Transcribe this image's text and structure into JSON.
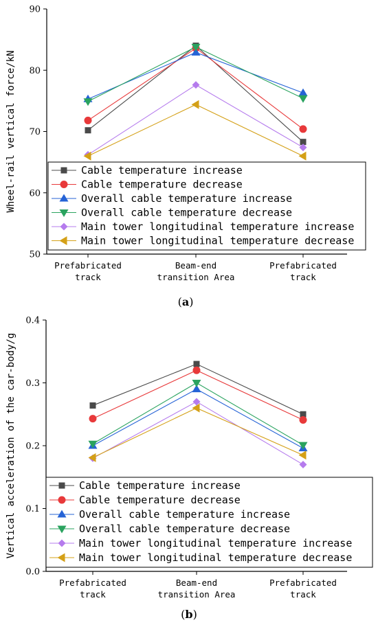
{
  "panel_labels": [
    "(a)",
    "(b)"
  ],
  "colors": {
    "Cable temperature increase": "#4a4a4a",
    "Cable temperature decrease": "#e8393a",
    "Overall cable temperature increase": "#2563d6",
    "Overall cable temperature decrease": "#2aa35f",
    "Main tower longitudinal temperature increase": "#b57bed",
    "Main tower longitudinal temperature decrease": "#d4a017"
  },
  "markers": {
    "Cable temperature increase": "square",
    "Cable temperature decrease": "circle",
    "Overall cable temperature increase": "triangle-up",
    "Overall cable temperature decrease": "triangle-down",
    "Main tower longitudinal temperature increase": "diamond",
    "Main tower longitudinal temperature decrease": "triangle-left"
  },
  "chart_data": [
    {
      "type": "line",
      "panel": "(a)",
      "ylabel": "Wheel-rail vertical force/kN",
      "xlabel": "",
      "categories": [
        [
          "Prefabricated",
          "track"
        ],
        [
          "Beam-end",
          "transition Area"
        ],
        [
          "Prefabricated",
          "track"
        ]
      ],
      "ylim": [
        50,
        90
      ],
      "yticks": [
        50,
        60,
        70,
        80,
        90
      ],
      "legend_position": "lower-center",
      "series": [
        {
          "name": "Cable temperature increase",
          "values": [
            70.2,
            84.0,
            68.3
          ]
        },
        {
          "name": "Cable temperature decrease",
          "values": [
            71.8,
            83.6,
            70.4
          ]
        },
        {
          "name": "Overall cable temperature increase",
          "values": [
            75.3,
            82.9,
            76.3
          ]
        },
        {
          "name": "Overall cable temperature decrease",
          "values": [
            74.9,
            83.8,
            75.4
          ]
        },
        {
          "name": "Main tower longitudinal temperature increase",
          "values": [
            66.2,
            77.6,
            67.4
          ]
        },
        {
          "name": "Main tower longitudinal temperature decrease",
          "values": [
            66.0,
            74.4,
            66.0
          ]
        }
      ]
    },
    {
      "type": "line",
      "panel": "(b)",
      "ylabel": "Vertical acceleration of the car-body/g",
      "xlabel": "",
      "categories": [
        [
          "Prefabricated",
          "track"
        ],
        [
          "Beam-end",
          "transition Area"
        ],
        [
          "Prefabricated",
          "track"
        ]
      ],
      "ylim": [
        0.0,
        0.4
      ],
      "yticks": [
        0.0,
        0.1,
        0.2,
        0.3,
        0.4
      ],
      "legend_position": "lower-center",
      "series": [
        {
          "name": "Cable temperature increase",
          "values": [
            0.264,
            0.33,
            0.25
          ]
        },
        {
          "name": "Cable temperature decrease",
          "values": [
            0.243,
            0.32,
            0.241
          ]
        },
        {
          "name": "Overall cable temperature increase",
          "values": [
            0.2,
            0.29,
            0.196
          ]
        },
        {
          "name": "Overall cable temperature decrease",
          "values": [
            0.203,
            0.3,
            0.201
          ]
        },
        {
          "name": "Main tower longitudinal temperature increase",
          "values": [
            0.18,
            0.27,
            0.17
          ]
        },
        {
          "name": "Main tower longitudinal temperature decrease",
          "values": [
            0.181,
            0.26,
            0.185
          ]
        }
      ]
    }
  ]
}
